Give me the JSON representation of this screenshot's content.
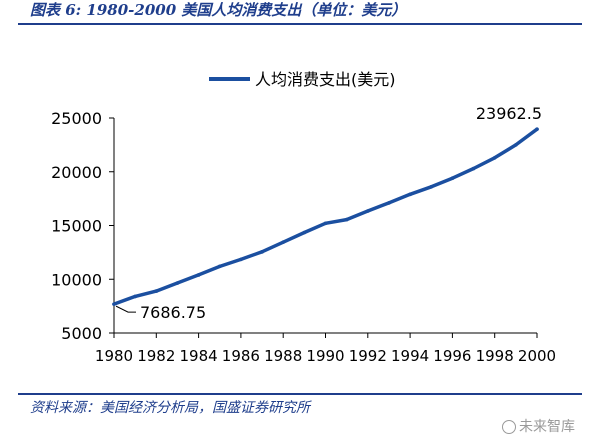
{
  "figure_title": "图表 6:  1980-2000 美国人均消费支出（单位：美元）",
  "source_note": "资料来源：美国经济分析局，国盛证券研究所",
  "watermark": "未来智库",
  "colors": {
    "accent": "#1f3e8c",
    "series": "#1b4fa0",
    "text": "#000000"
  },
  "chart_data": {
    "type": "line",
    "legend": {
      "position": "top-center"
    },
    "grid": false,
    "series": [
      {
        "name": "人均消费支出(美元)",
        "x": [
          1980,
          1981,
          1982,
          1983,
          1984,
          1985,
          1986,
          1987,
          1988,
          1989,
          1990,
          1991,
          1992,
          1993,
          1994,
          1995,
          1996,
          1997,
          1998,
          1999,
          2000
        ],
        "values": [
          7686.75,
          8400,
          8900,
          9650,
          10400,
          11200,
          11850,
          12550,
          13450,
          14350,
          15200,
          15550,
          16350,
          17100,
          17900,
          18600,
          19400,
          20300,
          21300,
          22500,
          23962.5
        ]
      }
    ],
    "xlim": [
      1980,
      2000
    ],
    "xticks": [
      "1980",
      "1982",
      "1984",
      "1986",
      "1988",
      "1990",
      "1992",
      "1994",
      "1996",
      "1998",
      "2000"
    ],
    "ylim": [
      5000,
      25000
    ],
    "yticks": [
      "5000",
      "10000",
      "15000",
      "20000",
      "25000"
    ],
    "annotations": [
      {
        "text": "23962.5",
        "x": 2000,
        "y": 23962.5
      },
      {
        "text": "7686.75",
        "x": 1980,
        "y": 7686.75
      }
    ]
  }
}
